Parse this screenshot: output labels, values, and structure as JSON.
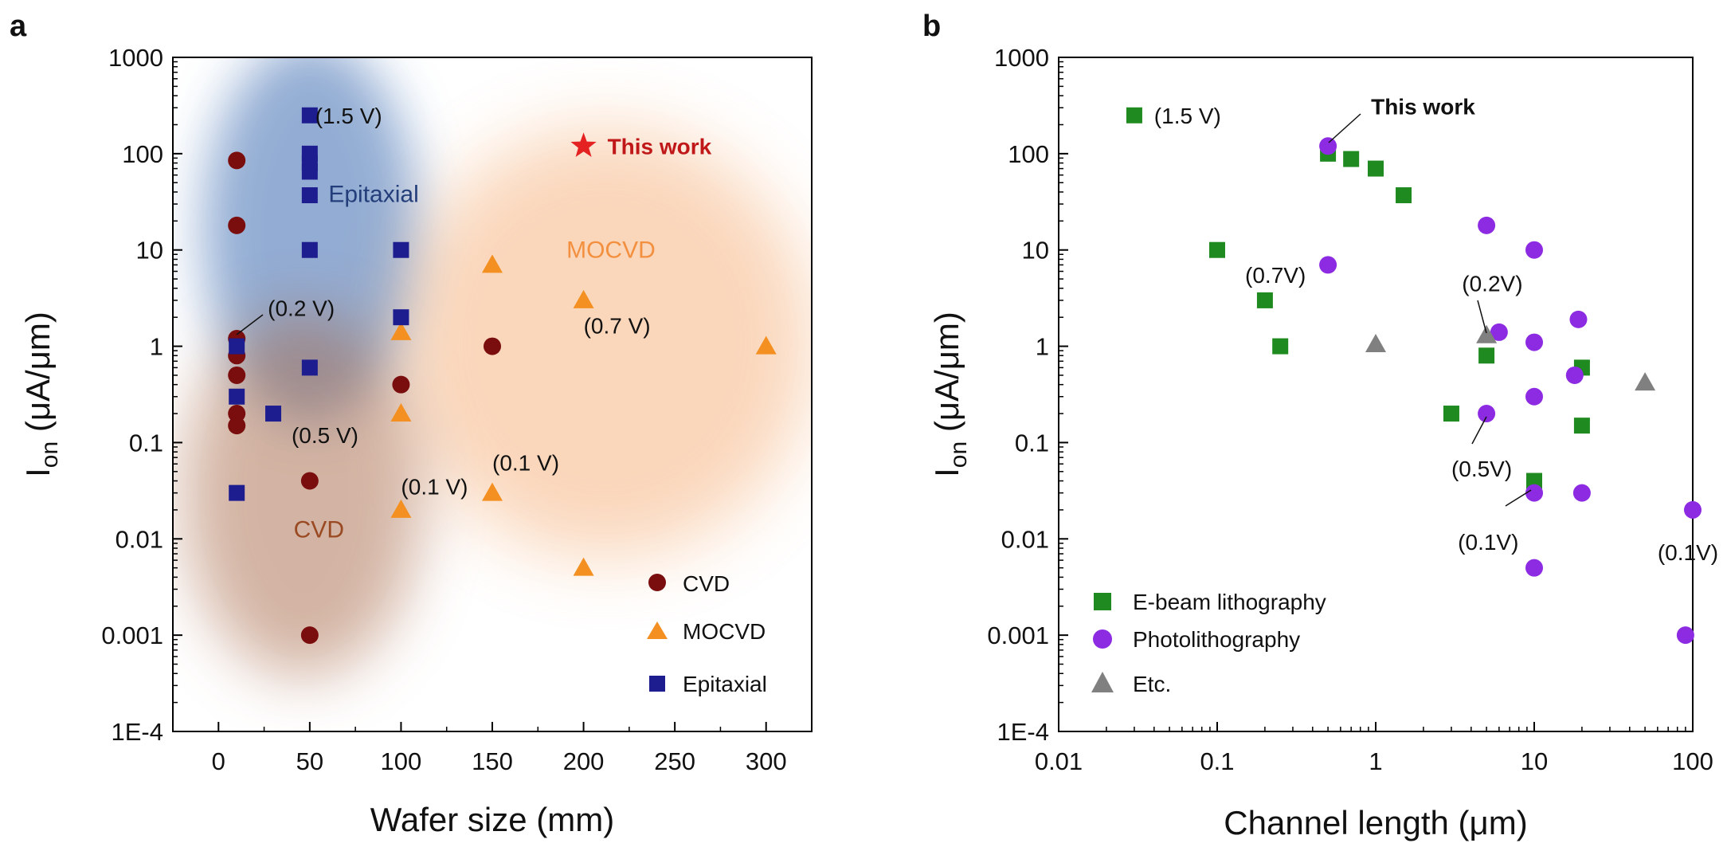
{
  "figure": {
    "colors": {
      "cvd": "#7a0d0d",
      "mocvd": "#f39021",
      "epitaxial": "#1d1d8f",
      "ebeam": "#1f8a1f",
      "photo": "#8c2be2",
      "etc": "#808080",
      "this_work_star": "#e52222",
      "this_work_text": "#c01818",
      "text": "#111111",
      "blob_blue": "#3a6ab0",
      "blob_orange": "#f4a568",
      "blob_brown": "#a86a4a"
    }
  },
  "chart_data": [
    {
      "panel": "a",
      "type": "scatter",
      "xlabel": "Wafer size (mm)",
      "ylabel_main": "I",
      "ylabel_sub": "on",
      "ylabel_rest": " (μA/μm)",
      "xscale": "linear",
      "yscale": "log",
      "xlim": [
        -25,
        325
      ],
      "ylim": [
        0.0001,
        1000
      ],
      "x_ticks": [
        0,
        50,
        100,
        150,
        200,
        250,
        300
      ],
      "x_tick_labels": [
        "0",
        "50",
        "100",
        "150",
        "200",
        "250",
        "300"
      ],
      "y_ticks": [
        0.0001,
        0.001,
        0.01,
        0.1,
        1,
        10,
        100,
        1000
      ],
      "y_tick_labels": [
        "1E-4",
        "0.001",
        "0.01",
        "0.1",
        "1",
        "10",
        "100",
        "1000"
      ],
      "regions": [
        {
          "name": "Epitaxial",
          "color": "#3a6ab0",
          "x": 60,
          "y": 12
        },
        {
          "name": "MOCVD",
          "color": "#f4a568",
          "x": 215,
          "y": 1.6
        },
        {
          "name": "CVD",
          "color": "#a86a4a",
          "x": 55,
          "y": 0.02
        }
      ],
      "series": [
        {
          "name": "CVD",
          "marker": "circle",
          "color": "#7a0d0d",
          "points": [
            [
              10,
              85
            ],
            [
              10,
              18
            ],
            [
              10,
              1.2
            ],
            [
              10,
              0.8
            ],
            [
              10,
              0.5
            ],
            [
              10,
              0.2
            ],
            [
              10,
              0.15
            ],
            [
              50,
              0.04
            ],
            [
              50,
              0.001
            ],
            [
              100,
              0.4
            ],
            [
              150,
              1
            ]
          ]
        },
        {
          "name": "MOCVD",
          "marker": "triangle",
          "color": "#f39021",
          "points": [
            [
              100,
              1.4
            ],
            [
              100,
              0.2
            ],
            [
              100,
              0.02
            ],
            [
              150,
              7
            ],
            [
              150,
              0.03
            ],
            [
              200,
              3
            ],
            [
              200,
              0.005
            ],
            [
              300,
              1
            ]
          ]
        },
        {
          "name": "Epitaxial",
          "marker": "square",
          "color": "#1d1d8f",
          "points": [
            [
              50,
              250
            ],
            [
              50,
              100
            ],
            [
              50,
              80
            ],
            [
              50,
              65
            ],
            [
              50,
              37
            ],
            [
              50,
              10
            ],
            [
              50,
              0.6
            ],
            [
              10,
              1
            ],
            [
              10,
              0.3
            ],
            [
              10,
              0.03
            ],
            [
              30,
              0.2
            ],
            [
              100,
              10
            ],
            [
              100,
              2
            ]
          ]
        }
      ],
      "this_work": {
        "label": "This work",
        "x": 200,
        "y": 120
      },
      "annotations": [
        {
          "text": "(1.5 V)",
          "x": 53,
          "y": 250
        },
        {
          "text": "(0.2 V)",
          "x": 27,
          "y": 2.5
        },
        {
          "text": "(0.5 V)",
          "x": 40,
          "y": 0.12
        },
        {
          "text": "(0.1 V)",
          "x": 100,
          "y": 0.035
        },
        {
          "text": "(0.1 V)",
          "x": 150,
          "y": 0.062
        },
        {
          "text": "(0.7 V)",
          "x": 200,
          "y": 1.65
        }
      ],
      "region_labels": [
        {
          "text": "Epitaxial",
          "x": 85,
          "y": 38,
          "color": "#233e7a"
        },
        {
          "text": "MOCVD",
          "x": 215,
          "y": 10,
          "color": "#f39040"
        },
        {
          "text": "CVD",
          "x": 55,
          "y": 0.0125,
          "color": "#9a4a22"
        }
      ],
      "legend": [
        {
          "label": "CVD",
          "marker": "circle",
          "color": "#7a0d0d"
        },
        {
          "label": "MOCVD",
          "marker": "triangle",
          "color": "#f39021"
        },
        {
          "label": "Epitaxial",
          "marker": "square",
          "color": "#1d1d8f"
        }
      ]
    },
    {
      "panel": "b",
      "type": "scatter",
      "xlabel": "Channel length (μm)",
      "ylabel_main": "I",
      "ylabel_sub": "on",
      "ylabel_rest": " (μA/μm)",
      "xscale": "log",
      "yscale": "log",
      "xlim": [
        0.01,
        100
      ],
      "ylim": [
        0.0001,
        1000
      ],
      "x_ticks": [
        0.01,
        0.1,
        1,
        10,
        100
      ],
      "x_tick_labels": [
        "0.01",
        "0.1",
        "1",
        "10",
        "100"
      ],
      "y_ticks": [
        0.0001,
        0.001,
        0.01,
        0.1,
        1,
        10,
        100,
        1000
      ],
      "y_tick_labels": [
        "1E-4",
        "0.001",
        "0.01",
        "0.1",
        "1",
        "10",
        "100",
        "1000"
      ],
      "series": [
        {
          "name": "E-beam lithography",
          "marker": "square",
          "color": "#1f8a1f",
          "points": [
            [
              0.03,
              250
            ],
            [
              0.5,
              100
            ],
            [
              0.7,
              88
            ],
            [
              1,
              70
            ],
            [
              1.5,
              37
            ],
            [
              0.1,
              10
            ],
            [
              0.2,
              3
            ],
            [
              0.25,
              1
            ],
            [
              3,
              0.2
            ],
            [
              5,
              0.8
            ],
            [
              10,
              0.04
            ],
            [
              20,
              0.6
            ],
            [
              20,
              0.15
            ]
          ]
        },
        {
          "name": "Photolithography",
          "marker": "circle",
          "color": "#8c2be2",
          "points": [
            [
              0.5,
              120
            ],
            [
              0.5,
              7
            ],
            [
              5,
              18
            ],
            [
              5,
              0.2
            ],
            [
              6,
              1.4
            ],
            [
              10,
              10
            ],
            [
              10,
              1.1
            ],
            [
              10,
              0.3
            ],
            [
              10,
              0.03
            ],
            [
              10,
              0.005
            ],
            [
              18,
              0.5
            ],
            [
              19,
              1.9
            ],
            [
              20,
              0.03
            ],
            [
              90,
              0.001
            ],
            [
              100,
              0.02
            ]
          ]
        },
        {
          "name": "Etc.",
          "marker": "triangle",
          "color": "#808080",
          "points": [
            [
              1,
              1.05
            ],
            [
              5,
              1.3
            ],
            [
              50,
              0.42
            ]
          ]
        }
      ],
      "this_work": {
        "label": "This work",
        "x": 0.5,
        "y": 120
      },
      "annotations": [
        {
          "text": "(1.5 V)",
          "x": 0.04,
          "y": 250
        },
        {
          "text": "(0.7V)",
          "x": 0.15,
          "y": 5.5
        },
        {
          "text": "(0.2V)",
          "x": 3.5,
          "y": 4.5
        },
        {
          "text": "(0.5V)",
          "x": 3.0,
          "y": 0.054
        },
        {
          "text": "(0.1V)",
          "x": 3.3,
          "y": 0.0093
        },
        {
          "text": "(0.1V)",
          "x": 60,
          "y": 0.0073
        }
      ],
      "legend": [
        {
          "label": "E-beam lithography",
          "marker": "square",
          "color": "#1f8a1f"
        },
        {
          "label": "Photolithography",
          "marker": "circle",
          "color": "#8c2be2"
        },
        {
          "label": "Etc.",
          "marker": "triangle",
          "color": "#808080"
        }
      ]
    }
  ]
}
